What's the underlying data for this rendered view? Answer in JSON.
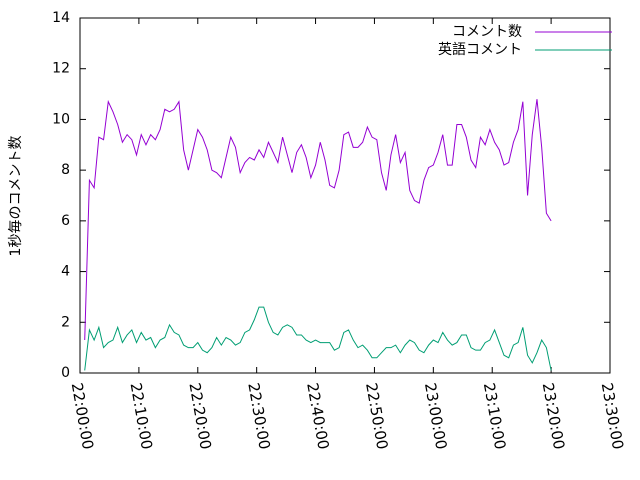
{
  "chart_data": {
    "type": "line",
    "ylabel": "1秒毎のコメント数",
    "x": [
      "22:00:48",
      "22:01:36",
      "22:02:24",
      "22:03:12",
      "22:04:00",
      "22:04:48",
      "22:05:36",
      "22:06:24",
      "22:07:12",
      "22:08:00",
      "22:08:48",
      "22:09:36",
      "22:10:24",
      "22:11:12",
      "22:12:00",
      "22:12:48",
      "22:13:36",
      "22:14:24",
      "22:15:12",
      "22:16:00",
      "22:16:48",
      "22:17:36",
      "22:18:24",
      "22:19:12",
      "22:20:00",
      "22:20:48",
      "22:21:36",
      "22:22:24",
      "22:23:12",
      "22:24:00",
      "22:24:48",
      "22:25:36",
      "22:26:24",
      "22:27:12",
      "22:28:00",
      "22:28:48",
      "22:29:36",
      "22:30:24",
      "22:31:12",
      "22:32:00",
      "22:32:48",
      "22:33:36",
      "22:34:24",
      "22:35:12",
      "22:36:00",
      "22:36:48",
      "22:37:36",
      "22:38:24",
      "22:39:12",
      "22:40:00",
      "22:40:48",
      "22:41:36",
      "22:42:24",
      "22:43:12",
      "22:44:00",
      "22:44:48",
      "22:45:36",
      "22:46:24",
      "22:47:12",
      "22:48:00",
      "22:48:48",
      "22:49:36",
      "22:50:24",
      "22:51:12",
      "22:52:00",
      "22:52:48",
      "22:53:36",
      "22:54:24",
      "22:55:12",
      "22:56:00",
      "22:56:48",
      "22:57:36",
      "22:58:24",
      "22:59:12",
      "23:00:00",
      "23:00:48",
      "23:01:36",
      "23:02:24",
      "23:03:12",
      "23:04:00",
      "23:04:48",
      "23:05:36",
      "23:06:24",
      "23:07:12",
      "23:08:00",
      "23:08:48",
      "23:09:36",
      "23:10:24",
      "23:11:12",
      "23:12:00",
      "23:12:48",
      "23:13:36",
      "23:14:24",
      "23:15:12",
      "23:16:00",
      "23:16:48",
      "23:17:36",
      "23:18:24",
      "23:19:12",
      "23:20:00"
    ],
    "series": [
      {
        "name": "コメント数",
        "color": "#9400d3",
        "values": [
          1.3,
          7.6,
          7.3,
          9.3,
          9.2,
          10.7,
          10.3,
          9.8,
          9.1,
          9.4,
          9.2,
          8.6,
          9.4,
          9.0,
          9.4,
          9.2,
          9.6,
          10.4,
          10.3,
          10.4,
          10.7,
          8.8,
          8.0,
          8.8,
          9.6,
          9.3,
          8.8,
          8.0,
          7.9,
          7.7,
          8.5,
          9.3,
          8.9,
          7.9,
          8.3,
          8.5,
          8.4,
          8.8,
          8.5,
          9.1,
          8.7,
          8.3,
          9.3,
          8.6,
          7.9,
          8.7,
          9.0,
          8.5,
          7.7,
          8.2,
          9.1,
          8.4,
          7.4,
          7.3,
          8.0,
          9.4,
          9.5,
          8.9,
          8.9,
          9.1,
          9.7,
          9.3,
          9.2,
          7.9,
          7.2,
          8.6,
          9.4,
          8.3,
          8.7,
          7.2,
          6.8,
          6.7,
          7.6,
          8.1,
          8.2,
          8.7,
          9.4,
          8.2,
          8.2,
          9.8,
          9.8,
          9.3,
          8.4,
          8.1,
          9.3,
          9.0,
          9.6,
          9.1,
          8.8,
          8.2,
          8.3,
          9.1,
          9.6,
          10.7,
          7.0,
          9.4,
          10.8,
          8.9,
          6.3,
          6.0
        ]
      },
      {
        "name": "英語コメント",
        "color": "#009e73",
        "values": [
          0.1,
          1.7,
          1.3,
          1.8,
          1.0,
          1.2,
          1.3,
          1.8,
          1.2,
          1.5,
          1.7,
          1.2,
          1.6,
          1.3,
          1.4,
          1.0,
          1.3,
          1.4,
          1.9,
          1.6,
          1.5,
          1.1,
          1.0,
          1.0,
          1.2,
          0.9,
          0.8,
          1.0,
          1.4,
          1.1,
          1.4,
          1.3,
          1.1,
          1.2,
          1.6,
          1.7,
          2.1,
          2.6,
          2.6,
          2.0,
          1.6,
          1.5,
          1.8,
          1.9,
          1.8,
          1.5,
          1.5,
          1.3,
          1.2,
          1.3,
          1.2,
          1.2,
          1.2,
          0.9,
          1.0,
          1.6,
          1.7,
          1.3,
          1.0,
          1.1,
          0.9,
          0.6,
          0.6,
          0.8,
          1.0,
          1.0,
          1.1,
          0.8,
          1.1,
          1.3,
          1.2,
          0.9,
          0.8,
          1.1,
          1.3,
          1.2,
          1.6,
          1.3,
          1.1,
          1.2,
          1.5,
          1.5,
          1.0,
          0.9,
          0.9,
          1.2,
          1.3,
          1.7,
          1.2,
          0.7,
          0.6,
          1.1,
          1.2,
          1.8,
          0.7,
          0.4,
          0.8,
          1.3,
          1.0,
          0.1
        ]
      }
    ],
    "xlim": [
      "22:00:00",
      "23:30:00"
    ],
    "xticks": [
      "22:00:00",
      "22:10:00",
      "22:20:00",
      "22:30:00",
      "22:40:00",
      "22:50:00",
      "23:00:00",
      "23:10:00",
      "23:20:00",
      "23:30:00"
    ],
    "ylim": [
      0,
      14
    ],
    "yticks": [
      0,
      2,
      4,
      6,
      8,
      10,
      12,
      14
    ],
    "legend": "upper-right",
    "grid": false
  }
}
